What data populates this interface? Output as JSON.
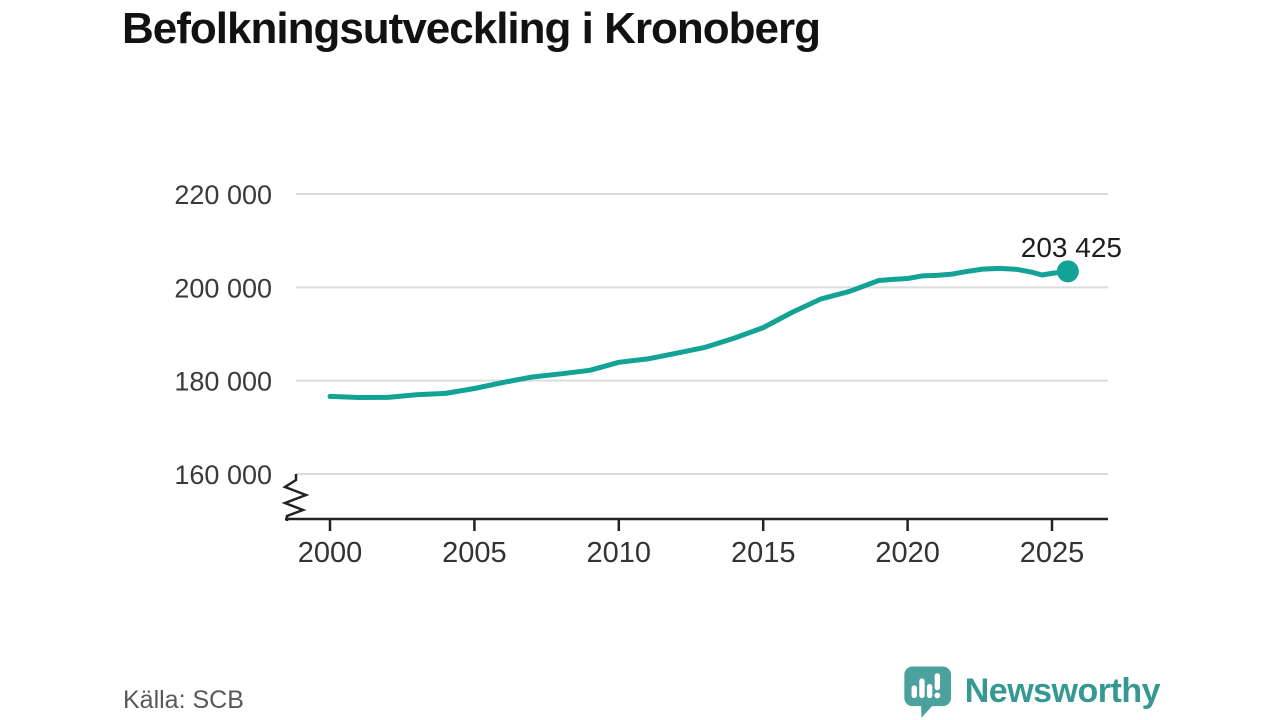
{
  "title": "Befolkningsutveckling i Kronoberg",
  "source": "Källa: SCB",
  "branding": {
    "name": "Newsworthy",
    "wordmark_color": "#359892",
    "icon": "speech-bubble-bar-chart-icon",
    "icon_color": "#4ba29d"
  },
  "chart_data": {
    "type": "line",
    "title": "Befolkningsutveckling i Kronoberg",
    "xlabel": "",
    "ylabel": "",
    "grid": "horizontal",
    "legend": "none",
    "axis_break": true,
    "line_color": "#12a296",
    "gridline_color": "#dcdcdc",
    "axis_color": "#222222",
    "x_ticks": [
      2000,
      2005,
      2010,
      2015,
      2020,
      2025
    ],
    "y_ticks": [
      {
        "value": 220000,
        "label": "220 000"
      },
      {
        "value": 200000,
        "label": "200 000"
      },
      {
        "value": 180000,
        "label": "180 000"
      },
      {
        "value": 160000,
        "label": "160 000"
      }
    ],
    "xlim": [
      1998.8,
      2027
    ],
    "ylim_shown": [
      160000,
      220000
    ],
    "series": [
      {
        "name": "Befolkning Kronoberg",
        "points": [
          [
            2000,
            176639
          ],
          [
            2001,
            176383
          ],
          [
            2002,
            176424
          ],
          [
            2003,
            176978
          ],
          [
            2004,
            177277
          ],
          [
            2005,
            178322
          ],
          [
            2006,
            179635
          ],
          [
            2007,
            180787
          ],
          [
            2008,
            181469
          ],
          [
            2009,
            182226
          ],
          [
            2010,
            183940
          ],
          [
            2011,
            184654
          ],
          [
            2012,
            185887
          ],
          [
            2013,
            187156
          ],
          [
            2014,
            189128
          ],
          [
            2015,
            191369
          ],
          [
            2016,
            194628
          ],
          [
            2017,
            197519
          ],
          [
            2018,
            199141
          ],
          [
            2019,
            201469
          ],
          [
            2019.5,
            201700
          ],
          [
            2020,
            201900
          ],
          [
            2020.5,
            202450
          ],
          [
            2021,
            202550
          ],
          [
            2021.5,
            202800
          ],
          [
            2022,
            203340
          ],
          [
            2022.6,
            203900
          ],
          [
            2023.2,
            204050
          ],
          [
            2023.8,
            203850
          ],
          [
            2024.3,
            203250
          ],
          [
            2024.65,
            202650
          ],
          [
            2025.05,
            203050
          ],
          [
            2025.55,
            203425
          ]
        ]
      }
    ],
    "end_point": {
      "x": 2025.55,
      "value": 203425,
      "label": "203 425"
    }
  }
}
